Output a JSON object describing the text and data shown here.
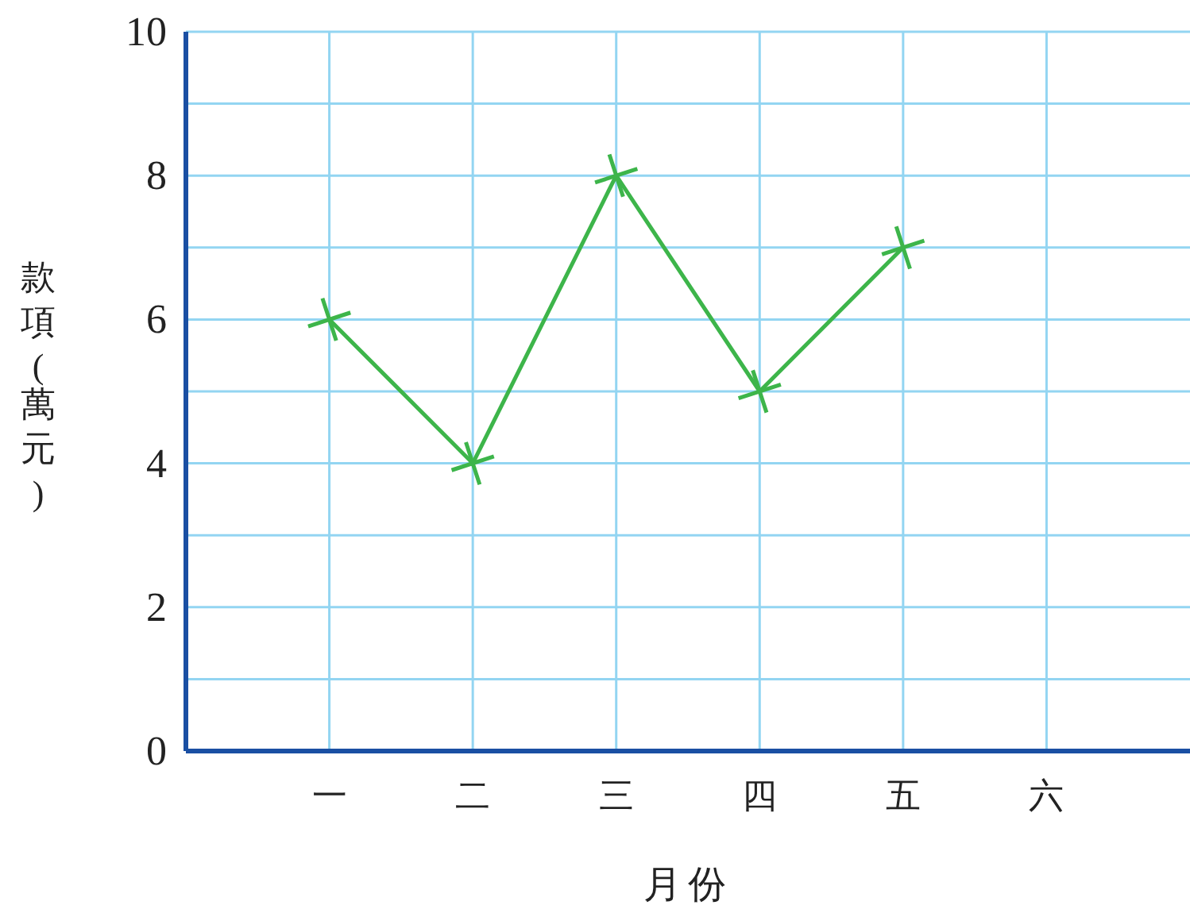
{
  "chart_data": {
    "type": "line",
    "xlabel": "月份",
    "ylabel": "款項(萬元)",
    "categories": [
      "一",
      "二",
      "三",
      "四",
      "五",
      "六"
    ],
    "series": [
      {
        "color": "#3db54a",
        "values": [
          6,
          4,
          8,
          5,
          7,
          null
        ]
      }
    ],
    "ylim": [
      0,
      10
    ],
    "yticks": [
      0,
      {
        "value": 1,
        "label": null
      },
      2,
      {
        "value": 3,
        "label": null
      },
      4,
      {
        "value": 5,
        "label": null
      },
      6,
      {
        "value": 7,
        "label": null
      },
      8,
      {
        "value": 9,
        "label": null
      },
      10
    ],
    "grid": true,
    "marker": "cross",
    "line_style": "solid"
  }
}
